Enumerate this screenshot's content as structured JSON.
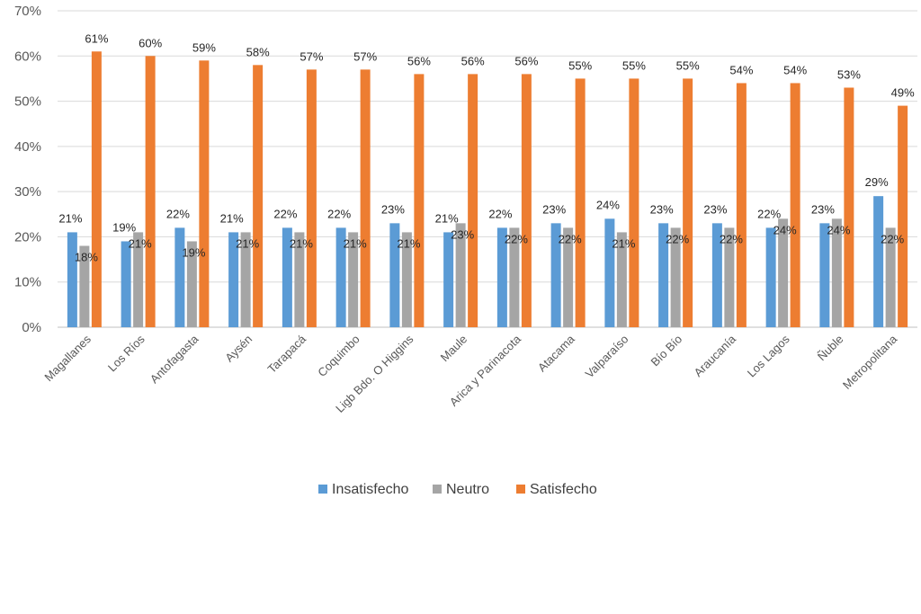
{
  "chart_data": {
    "type": "bar",
    "categories": [
      "Magallanes",
      "Los Ríos",
      "Antofagasta",
      "Aysén",
      "Tarapacá",
      "Coquimbo",
      "Ligb Bdo. O Higgins",
      "Maule",
      "Arica y Parinacota",
      "Atacama",
      "Valparaíso",
      "Bío Bío",
      "Araucanía",
      "Los Lagos",
      "Ñuble",
      "Metropolitana"
    ],
    "series": [
      {
        "name": "Insatisfecho",
        "color": "#5B9BD5",
        "values": [
          21,
          19,
          22,
          21,
          22,
          22,
          23,
          21,
          22,
          23,
          24,
          23,
          23,
          22,
          23,
          29
        ],
        "labels": [
          "21%",
          "19%",
          "22%",
          "21%",
          "22%",
          "22%",
          "23%",
          "21%",
          "22%",
          "23%",
          "24%",
          "23%",
          "23%",
          "22%",
          "23%",
          "29%"
        ]
      },
      {
        "name": "Neutro",
        "color": "#A5A5A5",
        "values": [
          18,
          21,
          19,
          21,
          21,
          21,
          21,
          23,
          22,
          22,
          21,
          22,
          22,
          24,
          24,
          22
        ],
        "labels": [
          "18%",
          "21%",
          "19%",
          "21%",
          "21%",
          "21%",
          "21%",
          "23%",
          "22%",
          "22%",
          "21%",
          "22%",
          "22%",
          "24%",
          "24%",
          "22%"
        ]
      },
      {
        "name": "Satisfecho",
        "color": "#ED7D31",
        "values": [
          61,
          60,
          59,
          58,
          57,
          57,
          56,
          56,
          56,
          55,
          55,
          55,
          54,
          54,
          53,
          49
        ],
        "labels": [
          "61%",
          "60%",
          "59%",
          "58%",
          "57%",
          "57%",
          "56%",
          "56%",
          "56%",
          "55%",
          "55%",
          "55%",
          "54%",
          "54%",
          "53%",
          "49%"
        ]
      }
    ],
    "y_ticks": [
      "0%",
      "10%",
      "20%",
      "30%",
      "40%",
      "50%",
      "60%",
      "70%"
    ],
    "ylim": [
      0,
      70
    ],
    "grid": true,
    "legend_position": "bottom"
  }
}
